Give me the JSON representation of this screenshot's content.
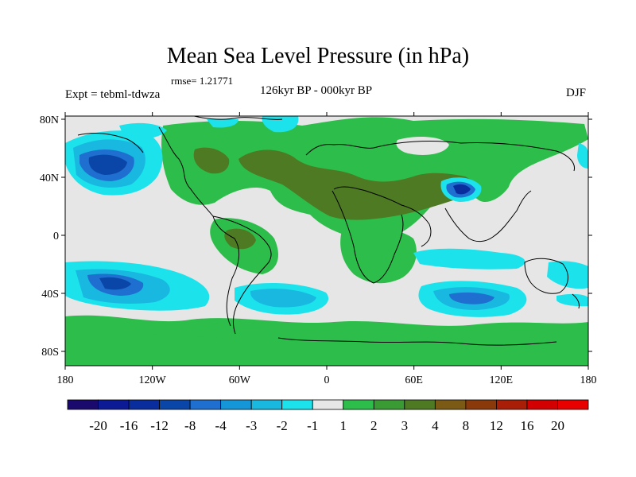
{
  "title": "Mean Sea Level Pressure (in hPa)",
  "rmse_label": "rmse= 1.21771",
  "expt_label": "Expt = tebml-tdwza",
  "difference_label": "126kyr BP - 000kyr BP",
  "season_label": "DJF",
  "axes": {
    "lon_ticks": [
      "180",
      "120W",
      "60W",
      "0",
      "60E",
      "120E",
      "180"
    ],
    "lat_ticks": [
      "80N",
      "40N",
      "0",
      "40S",
      "80S"
    ]
  },
  "legend": {
    "labels": [
      "-20",
      "-16",
      "-12",
      "-8",
      "-4",
      "-3",
      "-2",
      "-1",
      "1",
      "2",
      "3",
      "4",
      "8",
      "12",
      "16",
      "20"
    ],
    "colors": [
      "#1a0a6e",
      "#0d1a96",
      "#0a2d9e",
      "#0a46a8",
      "#1e6fcf",
      "#1496d8",
      "#18b8e0",
      "#1ce2ec",
      "#e6e6e6",
      "#2dbd4a",
      "#3a9a34",
      "#4d7a22",
      "#7a5a14",
      "#8a3a0a",
      "#a81e06",
      "#d20000",
      "#e80000"
    ]
  },
  "colors": {
    "neutral": "#e6e6e6",
    "coast": "#000000"
  }
}
